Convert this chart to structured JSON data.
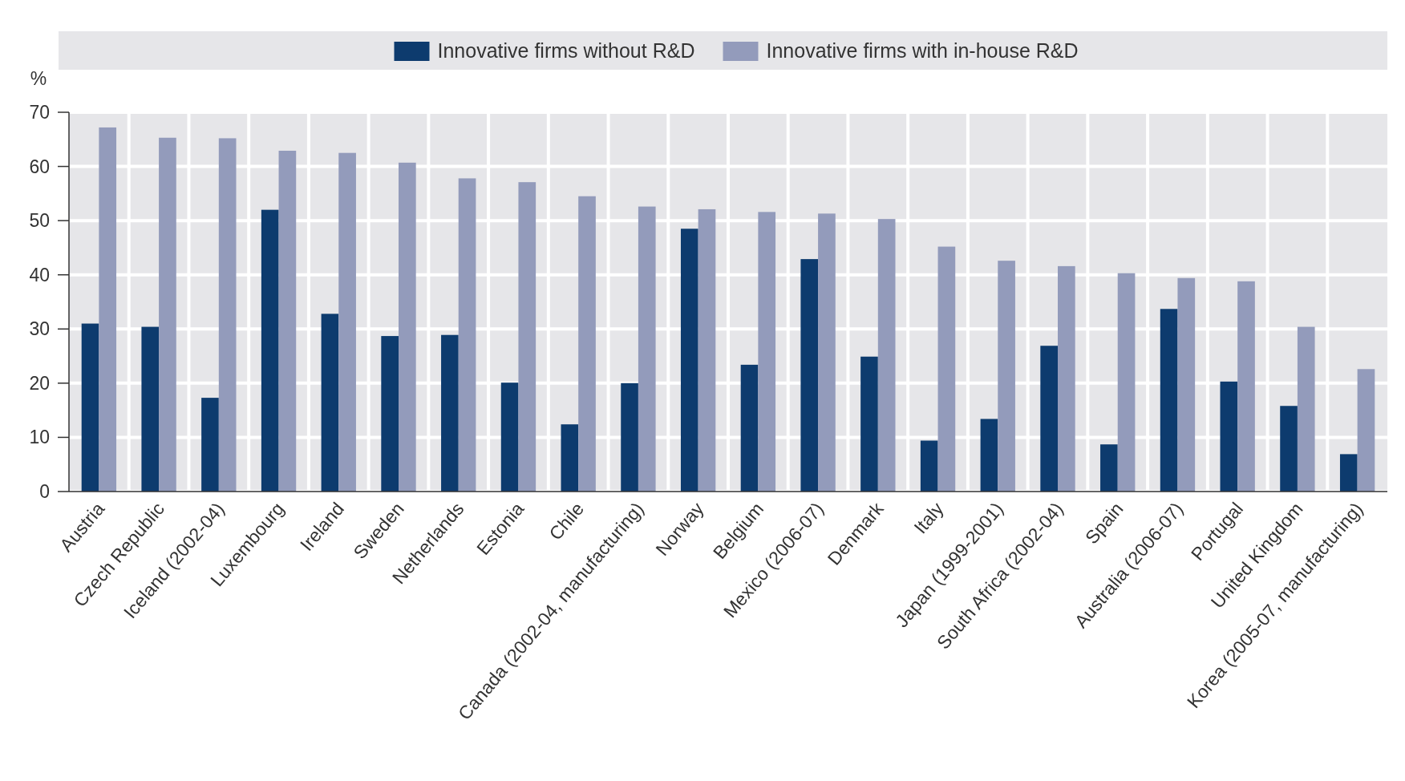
{
  "chart_data": {
    "type": "bar",
    "ylabel": "%",
    "categories": [
      "Austria",
      "Czech Republic",
      "Iceland (2002-04)",
      "Luxembourg",
      "Ireland",
      "Sweden",
      "Netherlands",
      "Estonia",
      "Chile",
      "Canada (2002-04, manufacturing)",
      "Norway",
      "Belgium",
      "Mexico (2006-07)",
      "Denmark",
      "Italy",
      "Japan (1999-2001)",
      "South Africa (2002-04)",
      "Spain",
      "Australia (2006-07)",
      "Portugal",
      "United Kingdom",
      "Korea (2005-07, manufacturing)"
    ],
    "series": [
      {
        "name": "Innovative firms without R&D",
        "color": "#0d3b6e",
        "values": [
          31,
          30.4,
          17.3,
          52,
          32.8,
          28.7,
          28.9,
          20.1,
          12.4,
          20,
          48.5,
          23.4,
          42.9,
          24.9,
          9.4,
          13.4,
          26.9,
          8.7,
          33.7,
          20.3,
          15.8,
          6.9
        ]
      },
      {
        "name": "Innovative firms with in-house R&D",
        "color": "#939bbb",
        "values": [
          67.2,
          65.3,
          65.2,
          62.9,
          62.5,
          60.7,
          57.8,
          57.1,
          54.5,
          52.6,
          52.1,
          51.6,
          51.3,
          50.3,
          45.2,
          42.6,
          41.6,
          40.3,
          39.4,
          38.8,
          30.4,
          22.6
        ]
      }
    ],
    "ylim": [
      0,
      70
    ],
    "yticks": [
      0,
      10,
      20,
      30,
      40,
      50,
      60,
      70
    ],
    "grid": true,
    "legend": "top"
  }
}
